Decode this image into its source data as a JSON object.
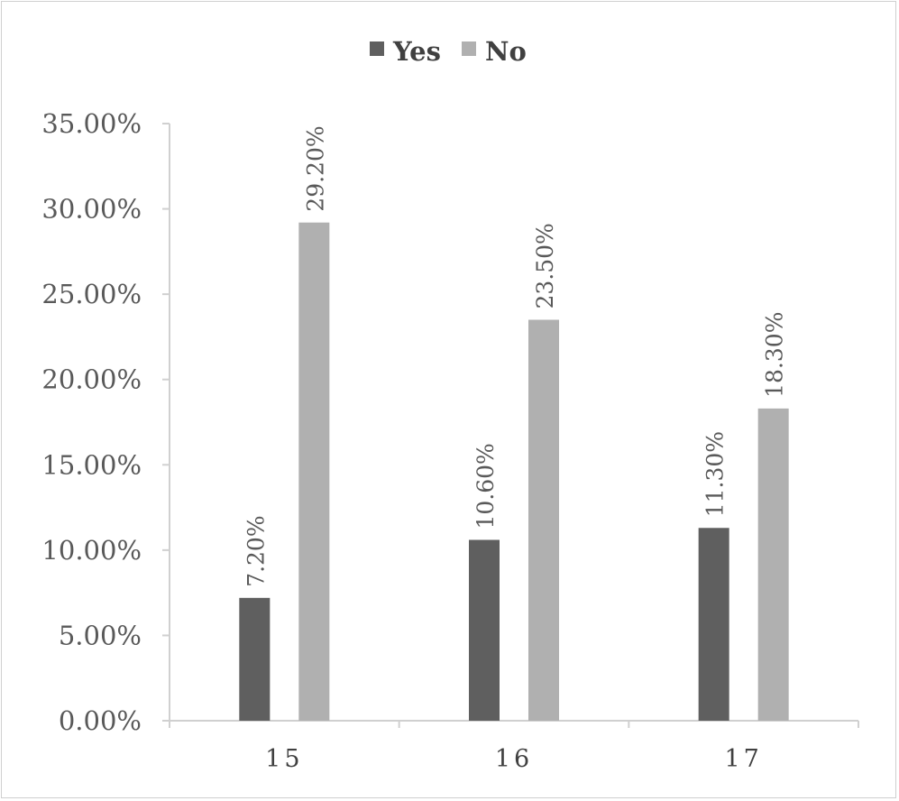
{
  "chart_data": {
    "type": "bar",
    "categories": [
      "15",
      "16",
      "17"
    ],
    "series": [
      {
        "name": "Yes",
        "color": "#5f5f5f",
        "values": [
          7.2,
          10.6,
          11.3
        ],
        "labels": [
          "7.20%",
          "10.60%",
          "11.30%"
        ]
      },
      {
        "name": "No",
        "color": "#b0b0b0",
        "values": [
          29.2,
          23.5,
          18.3
        ],
        "labels": [
          "29.20%",
          "23.50%",
          "18.30%"
        ]
      }
    ],
    "ylim": [
      0,
      35
    ],
    "yticks": [
      0,
      5,
      10,
      15,
      20,
      25,
      30,
      35
    ],
    "ytick_labels": [
      "0.00%",
      "5.00%",
      "10.00%",
      "15.00%",
      "20.00%",
      "25.00%",
      "30.00%",
      "35.00%"
    ],
    "legend_position": "top-center",
    "grid": false,
    "title": "",
    "xlabel": "",
    "ylabel": ""
  }
}
